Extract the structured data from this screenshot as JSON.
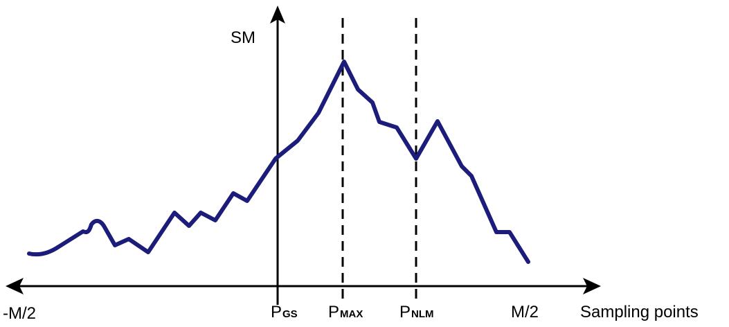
{
  "colors": {
    "curve": "#1c1c7a",
    "axis": "#000000"
  },
  "labels": {
    "y_axis": "SM",
    "x_axis": "Sampling points",
    "left_end": "-M/2",
    "right_end": "M/2",
    "p_gs": {
      "base": "P",
      "sub": "GS"
    },
    "p_max": {
      "base": "P",
      "sub": "MAX"
    },
    "p_nlm": {
      "base": "P",
      "sub": "NLM"
    }
  }
}
